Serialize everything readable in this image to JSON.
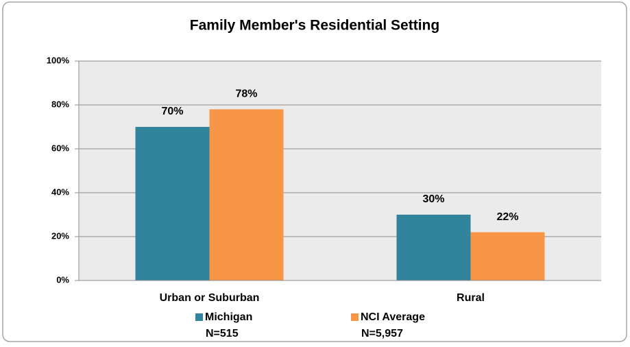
{
  "chart_data": {
    "type": "bar",
    "title": "Family Member's Residential Setting",
    "categories": [
      "Urban or Suburban",
      "Rural"
    ],
    "series": [
      {
        "name": "Michigan",
        "note": "N=515",
        "color": "#31849b",
        "values": [
          70,
          30
        ],
        "value_labels": [
          "70%",
          "30%"
        ]
      },
      {
        "name": "NCI Average",
        "note": "N=5,957",
        "color": "#f79646",
        "values": [
          78,
          22
        ],
        "value_labels": [
          "78%",
          "22%"
        ]
      }
    ],
    "ylim": [
      0,
      100
    ],
    "yticks": [
      {
        "value": 0,
        "label": "0%"
      },
      {
        "value": 20,
        "label": "20%"
      },
      {
        "value": 40,
        "label": "40%"
      },
      {
        "value": 60,
        "label": "60%"
      },
      {
        "value": 80,
        "label": "80%"
      },
      {
        "value": 100,
        "label": "100%"
      }
    ],
    "grid": true,
    "legend": "bottom"
  }
}
